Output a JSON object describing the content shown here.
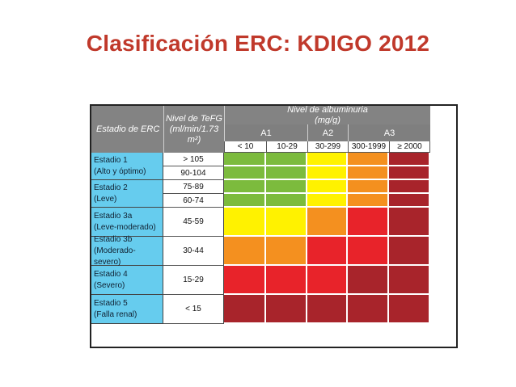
{
  "title": "Clasificación ERC: KDIGO 2012",
  "table": {
    "stage_header": "Estadio de ERC",
    "gfr_header_line1": "Nivel de TeFG",
    "gfr_header_line2": "(ml/min/1.73 m²)",
    "albuminuria_header_line1": "Nivel de albuminuria",
    "albuminuria_header_line2": "(mg/g)",
    "categories": [
      "A1",
      "A2",
      "A3"
    ],
    "subcategories": [
      "< 10",
      "10-29",
      "30-299",
      "300-1999",
      "≥ 2000"
    ],
    "stages": [
      {
        "name": "Estadio 1",
        "desc": "(Alto y óptimo)",
        "gfr": [
          "> 105",
          "90-104"
        ]
      },
      {
        "name": "Estadio 2",
        "desc": "(Leve)",
        "gfr": [
          "75-89",
          "60-74"
        ]
      },
      {
        "name": "Estadio 3a",
        "desc": "(Leve-moderado)",
        "gfr": [
          "45-59"
        ]
      },
      {
        "name": "Estadio 3b",
        "desc": "(Moderado-severo)",
        "gfr": [
          "30-44"
        ]
      },
      {
        "name": "Estadio 4",
        "desc": "(Severo)",
        "gfr": [
          "15-29"
        ]
      },
      {
        "name": "Estadio 5",
        "desc": "(Falla renal)",
        "gfr": [
          "< 15"
        ]
      }
    ],
    "risk_colors": {
      "green": "#7cbb3d",
      "yellow": "#fff200",
      "orange": "#f4901f",
      "red": "#e8232a",
      "dark_red": "#a8242b"
    },
    "risk_grid": [
      [
        "green",
        "green",
        "yellow",
        "orange",
        "dark_red"
      ],
      [
        "green",
        "green",
        "yellow",
        "orange",
        "dark_red"
      ],
      [
        "green",
        "green",
        "yellow",
        "orange",
        "dark_red"
      ],
      [
        "green",
        "green",
        "yellow",
        "orange",
        "dark_red"
      ],
      [
        "yellow",
        "yellow",
        "orange",
        "red",
        "dark_red"
      ],
      [
        "orange",
        "orange",
        "red",
        "red",
        "dark_red"
      ],
      [
        "red",
        "red",
        "red",
        "dark_red",
        "dark_red"
      ],
      [
        "dark_red",
        "dark_red",
        "dark_red",
        "dark_red",
        "dark_red"
      ]
    ]
  }
}
